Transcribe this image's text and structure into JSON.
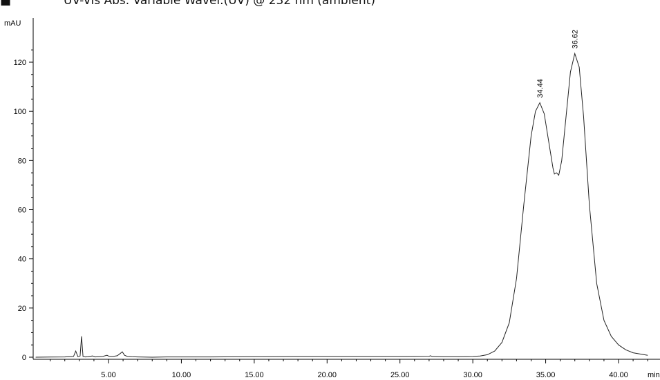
{
  "chart_data": {
    "type": "line",
    "title": "UV-Vis Abs. Variable Wavel.(UV) @ 232 nm (ambient)",
    "title_marker": "■",
    "ylabel": "mAU",
    "xlabel": "min",
    "xlim": [
      0,
      42.0
    ],
    "ylim": [
      -1,
      132
    ],
    "grid": false,
    "x_ticks": [
      5.0,
      10.0,
      15.0,
      20.0,
      25.0,
      30.0,
      35.0,
      40.0
    ],
    "x_tick_labels": [
      "5.00",
      "10.00",
      "15.00",
      "20.00",
      "25.00",
      "30.00",
      "35.00",
      "40.00"
    ],
    "y_ticks": [
      0,
      20,
      40,
      60,
      80,
      100,
      120
    ],
    "y_tick_labels": [
      "0",
      "20",
      "40",
      "60",
      "80",
      "100",
      "120"
    ],
    "peak_labels": [
      {
        "text": "34.44",
        "x": 34.6,
        "y": 103.5
      },
      {
        "text": "36.62",
        "x": 37.0,
        "y": 123.5
      }
    ],
    "series": [
      {
        "color": "#222222",
        "x": [
          0.0,
          1.0,
          2.0,
          2.6,
          2.75,
          2.9,
          3.05,
          3.15,
          3.25,
          3.4,
          3.6,
          3.9,
          4.1,
          4.3,
          4.6,
          4.9,
          5.05,
          5.3,
          5.6,
          5.8,
          5.95,
          6.1,
          6.3,
          6.6,
          7.0,
          8.0,
          9.0,
          10.0,
          12.0,
          15.0,
          18.0,
          20.0,
          22.0,
          25.0,
          27.0,
          27.1,
          27.2,
          28.0,
          29.0,
          30.0,
          30.5,
          31.0,
          31.5,
          32.0,
          32.5,
          33.0,
          33.5,
          34.0,
          34.3,
          34.6,
          34.9,
          35.2,
          35.5,
          35.6,
          35.75,
          35.9,
          36.1,
          36.4,
          36.7,
          37.0,
          37.3,
          37.6,
          38.0,
          38.5,
          39.0,
          39.5,
          40.0,
          40.5,
          41.0,
          42.0
        ],
        "values": [
          0.0,
          0.05,
          0.1,
          0.3,
          2.5,
          0.2,
          0.5,
          8.5,
          0.3,
          0.1,
          0.2,
          0.5,
          0.1,
          0.2,
          0.3,
          0.8,
          0.3,
          0.3,
          0.6,
          1.5,
          2.2,
          0.8,
          0.3,
          0.2,
          0.1,
          0.0,
          0.1,
          0.1,
          0.1,
          0.2,
          0.3,
          0.3,
          0.3,
          0.3,
          0.4,
          0.6,
          0.3,
          0.2,
          0.2,
          0.3,
          0.5,
          1.0,
          2.5,
          6.0,
          14.0,
          32.0,
          62.0,
          90.0,
          100.0,
          103.5,
          99.0,
          88.0,
          77.0,
          74.5,
          75.0,
          74.0,
          80.0,
          98.0,
          116.0,
          123.5,
          118.0,
          98.0,
          62.0,
          30.0,
          15.0,
          8.5,
          5.0,
          3.0,
          1.8,
          0.8
        ]
      }
    ]
  }
}
